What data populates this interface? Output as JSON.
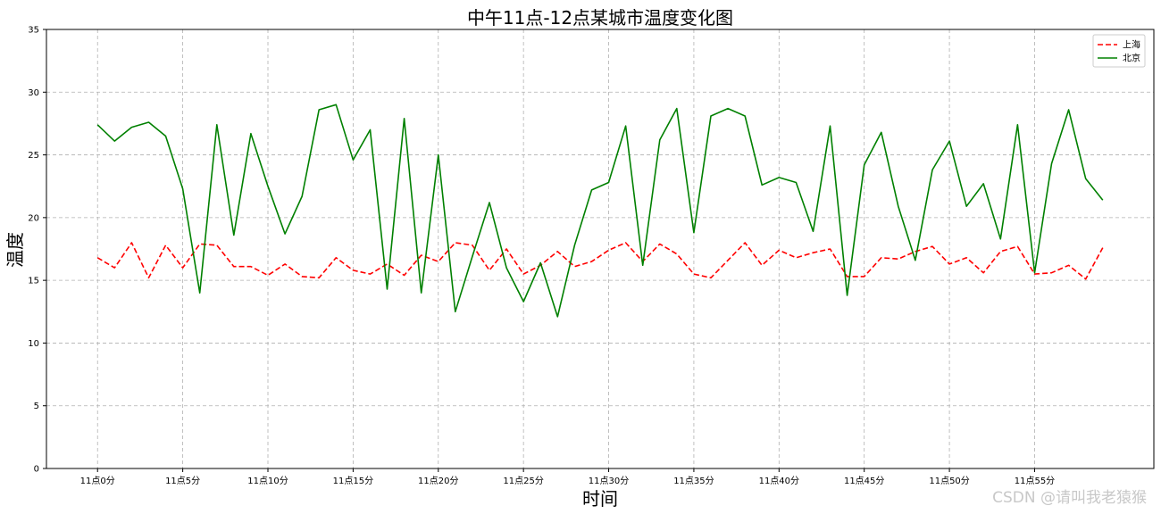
{
  "chart_data": {
    "type": "line",
    "title": "中午11点-12点某城市温度变化图",
    "xlabel": "时间",
    "ylabel": "温度",
    "ylim": [
      0,
      35
    ],
    "yticks": [
      0,
      5,
      10,
      15,
      20,
      25,
      30,
      35
    ],
    "x": [
      0,
      1,
      2,
      3,
      4,
      5,
      6,
      7,
      8,
      9,
      10,
      11,
      12,
      13,
      14,
      15,
      16,
      17,
      18,
      19,
      20,
      21,
      22,
      23,
      24,
      25,
      26,
      27,
      28,
      29,
      30,
      31,
      32,
      33,
      34,
      35,
      36,
      37,
      38,
      39,
      40,
      41,
      42,
      43,
      44,
      45,
      46,
      47,
      48,
      49,
      50,
      51,
      52,
      53,
      54,
      55,
      56,
      57,
      58,
      59
    ],
    "xtick_values": [
      0,
      5,
      10,
      15,
      20,
      25,
      30,
      35,
      40,
      45,
      50,
      55
    ],
    "xtick_labels": [
      "11点0分",
      "11点5分",
      "11点10分",
      "11点15分",
      "11点20分",
      "11点25分",
      "11点30分",
      "11点35分",
      "11点40分",
      "11点45分",
      "11点50分",
      "11点55分"
    ],
    "grid": true,
    "legend_position": "top-right",
    "series": [
      {
        "name": "上海",
        "color": "#ff0000",
        "linestyle": "dashed",
        "values": [
          16.8,
          16.0,
          18.0,
          15.2,
          17.8,
          16.0,
          17.9,
          17.8,
          16.1,
          16.1,
          15.4,
          16.3,
          15.3,
          15.2,
          16.8,
          15.8,
          15.5,
          16.3,
          15.4,
          17.0,
          16.5,
          18.0,
          17.8,
          15.8,
          17.5,
          15.5,
          16.2,
          17.3,
          16.1,
          16.5,
          17.4,
          18.0,
          16.5,
          17.9,
          17.1,
          15.5,
          15.2,
          16.6,
          18.0,
          16.2,
          17.4,
          16.8,
          17.2,
          17.5,
          15.3,
          15.3,
          16.8,
          16.7,
          17.3,
          17.7,
          16.3,
          16.8,
          15.6,
          17.3,
          17.7,
          15.5,
          15.6,
          16.2,
          15.1,
          17.6
        ]
      },
      {
        "name": "北京",
        "color": "#008000",
        "linestyle": "solid",
        "values": [
          27.4,
          26.1,
          27.2,
          27.6,
          26.5,
          22.3,
          14.0,
          27.4,
          18.6,
          26.7,
          22.5,
          18.7,
          21.7,
          28.6,
          29.0,
          24.6,
          27.0,
          14.3,
          27.9,
          14.0,
          25.0,
          12.5,
          16.9,
          21.2,
          16.0,
          13.3,
          16.4,
          12.1,
          17.8,
          22.2,
          22.8,
          27.3,
          16.2,
          26.2,
          28.7,
          18.8,
          28.1,
          28.7,
          28.1,
          22.6,
          23.2,
          22.8,
          18.9,
          27.3,
          13.8,
          24.2,
          26.8,
          20.9,
          16.6,
          23.8,
          26.1,
          20.9,
          22.7,
          18.3,
          27.4,
          15.6,
          24.3,
          28.6,
          23.1,
          21.4
        ]
      }
    ]
  },
  "watermark": "CSDN @请叫我老猿猴"
}
